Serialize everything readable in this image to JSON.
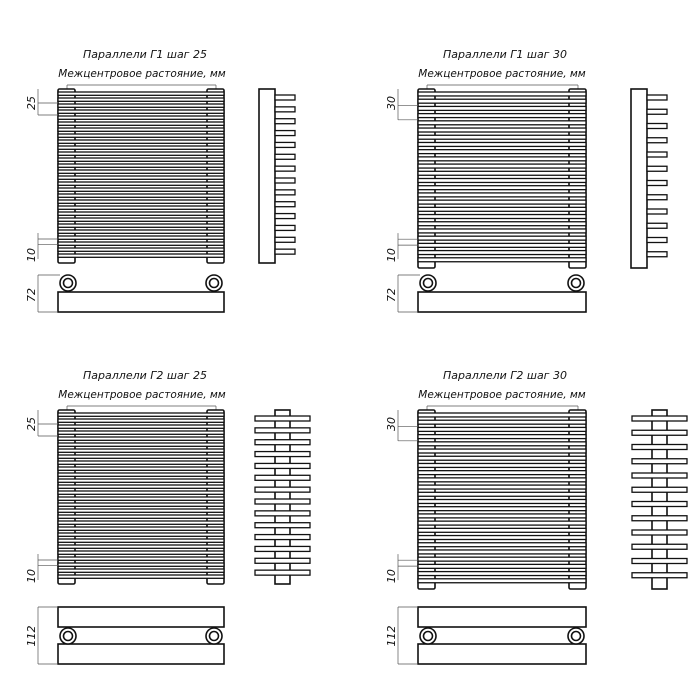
{
  "panels": [
    {
      "title": "Параллели Г1 шаг 25",
      "subtitle": "Межцентровое растояние, мм",
      "pitch_label": "25",
      "tube_label": "10",
      "depth_label": "72",
      "type": "G1",
      "sections": 14
    },
    {
      "title": "Параллели Г1 шаг 30",
      "subtitle": "Межцентровое растояние, мм",
      "pitch_label": "30",
      "tube_label": "10",
      "depth_label": "72",
      "type": "G1",
      "sections": 12
    },
    {
      "title": "Параллели Г2 шаг 25",
      "subtitle": "Межцентровое растояние, мм",
      "pitch_label": "25",
      "tube_label": "10",
      "depth_label": "112",
      "type": "G2",
      "sections": 14
    },
    {
      "title": "Параллели Г2 шаг 30",
      "subtitle": "Межцентровое растояние, мм",
      "pitch_label": "30",
      "tube_label": "10",
      "depth_label": "112",
      "type": "G2",
      "sections": 12
    }
  ]
}
